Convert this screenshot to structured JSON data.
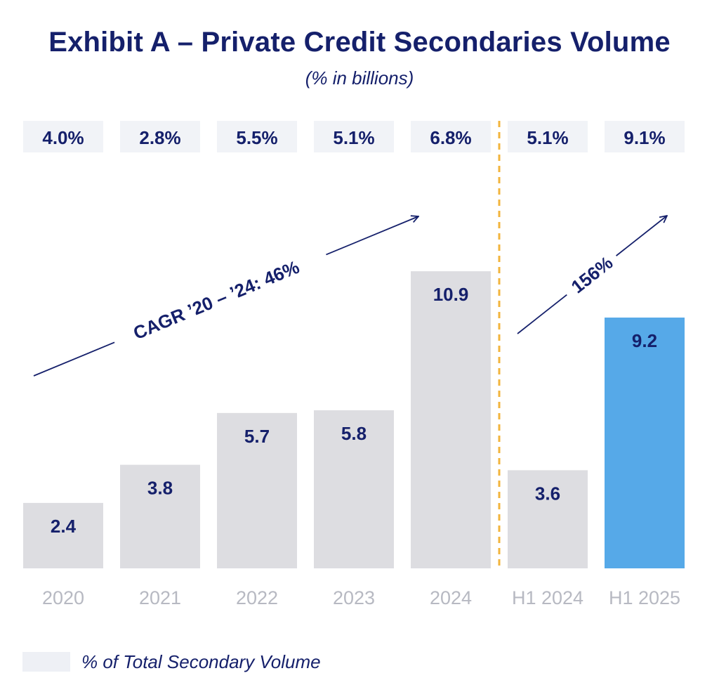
{
  "header": {
    "title": "Exhibit A – Private Credit Secondaries Volume",
    "subtitle": "(% in billions)"
  },
  "legend": {
    "label": "% of Total Secondary Volume"
  },
  "colors": {
    "bar": "#dddde1",
    "bar_highlight": "#56a9e8",
    "text": "#15206b",
    "axis_text": "#b7b9c2",
    "pct_box": "#f1f3f7",
    "divider": "#f2b43c"
  },
  "chart_data": {
    "type": "bar",
    "categories": [
      "2020",
      "2021",
      "2022",
      "2023",
      "2024",
      "H1 2024",
      "H1 2025"
    ],
    "values": [
      2.4,
      3.8,
      5.7,
      5.8,
      10.9,
      3.6,
      9.2
    ],
    "value_labels": [
      "2.4",
      "3.8",
      "5.7",
      "5.8",
      "10.9",
      "3.6",
      "9.2"
    ],
    "pct_of_total": [
      "4.0%",
      "2.8%",
      "5.5%",
      "5.1%",
      "6.8%",
      "5.1%",
      "9.1%"
    ],
    "highlight_index": 6,
    "divider_after_category": "2024",
    "annotations": [
      {
        "text": "CAGR ’20 – ’24: 46%",
        "from": "2020",
        "to": "2024"
      },
      {
        "text": "156%",
        "from": "H1 2024",
        "to": "H1 2025"
      }
    ],
    "title": "Exhibit A – Private Credit Secondaries Volume",
    "subtitle": "(% in billions)",
    "grid": false,
    "legend_position": "bottom-left"
  }
}
